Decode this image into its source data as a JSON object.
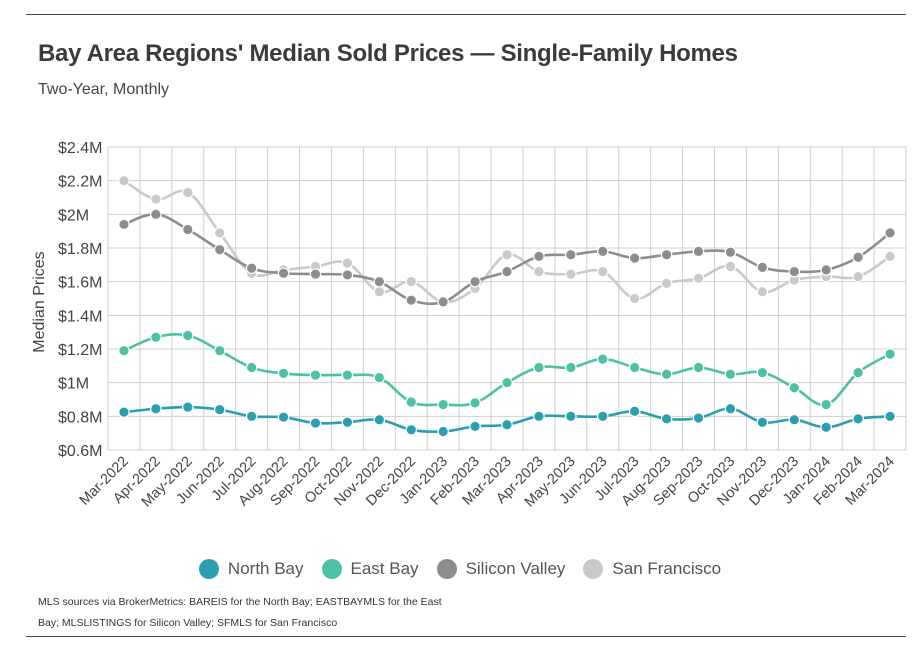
{
  "title": "Bay Area Regions' Median Sold Prices — Single-Family Homes",
  "subtitle": "Two-Year, Monthly",
  "source_note": "MLS sources via BrokerMetrics: BAREIS for the North Bay; EASTBAYMLS for the East Bay; MLSLISTINGS for Silicon Valley; SFMLS for San Francisco",
  "chart_data": {
    "type": "line",
    "ylabel": "Median Prices",
    "xlabel": "",
    "ylim": [
      0.6,
      2.4
    ],
    "y_ticks": [
      0.6,
      0.8,
      1.0,
      1.2,
      1.4,
      1.6,
      1.8,
      2.0,
      2.2,
      2.4
    ],
    "y_tick_labels": [
      "$0.6M",
      "$0.8M",
      "$1M",
      "$1.2M",
      "$1.4M",
      "$1.6M",
      "$1.8M",
      "$2M",
      "$2.2M",
      "$2.4M"
    ],
    "categories": [
      "Mar-2022",
      "Apr-2022",
      "May-2022",
      "Jun-2022",
      "Jul-2022",
      "Aug-2022",
      "Sep-2022",
      "Oct-2022",
      "Nov-2022",
      "Dec-2022",
      "Jan-2023",
      "Feb-2023",
      "Mar-2023",
      "Apr-2023",
      "May-2023",
      "Jun-2023",
      "Jul-2023",
      "Aug-2023",
      "Sep-2023",
      "Oct-2023",
      "Nov-2023",
      "Dec-2023",
      "Jan-2024",
      "Feb-2024",
      "Mar-2024"
    ],
    "grid": true,
    "legend_position": "bottom",
    "series": [
      {
        "name": "North Bay",
        "color": "#2a9fb0",
        "values": [
          0.825,
          0.845,
          0.855,
          0.84,
          0.8,
          0.795,
          0.76,
          0.765,
          0.78,
          0.72,
          0.71,
          0.74,
          0.75,
          0.8,
          0.8,
          0.8,
          0.83,
          0.785,
          0.79,
          0.845,
          0.765,
          0.78,
          0.735,
          0.785,
          0.8
        ]
      },
      {
        "name": "East Bay",
        "color": "#4dc1a5",
        "values": [
          1.19,
          1.27,
          1.28,
          1.19,
          1.09,
          1.055,
          1.045,
          1.045,
          1.03,
          0.885,
          0.87,
          0.88,
          1.0,
          1.09,
          1.09,
          1.14,
          1.09,
          1.05,
          1.09,
          1.05,
          1.06,
          0.97,
          0.87,
          1.06,
          1.17
        ]
      },
      {
        "name": "Silicon Valley",
        "color": "#8d8d8d",
        "values": [
          1.94,
          2.0,
          1.91,
          1.79,
          1.68,
          1.65,
          1.645,
          1.64,
          1.6,
          1.49,
          1.48,
          1.6,
          1.66,
          1.75,
          1.76,
          1.78,
          1.74,
          1.76,
          1.78,
          1.775,
          1.685,
          1.66,
          1.67,
          1.745,
          1.89
        ]
      },
      {
        "name": "San Francisco",
        "color": "#c9c9c9",
        "values": [
          2.2,
          2.09,
          2.13,
          1.89,
          1.65,
          1.67,
          1.69,
          1.71,
          1.54,
          1.6,
          1.48,
          1.56,
          1.76,
          1.66,
          1.645,
          1.66,
          1.5,
          1.59,
          1.62,
          1.69,
          1.54,
          1.61,
          1.63,
          1.63,
          1.75
        ]
      }
    ]
  }
}
